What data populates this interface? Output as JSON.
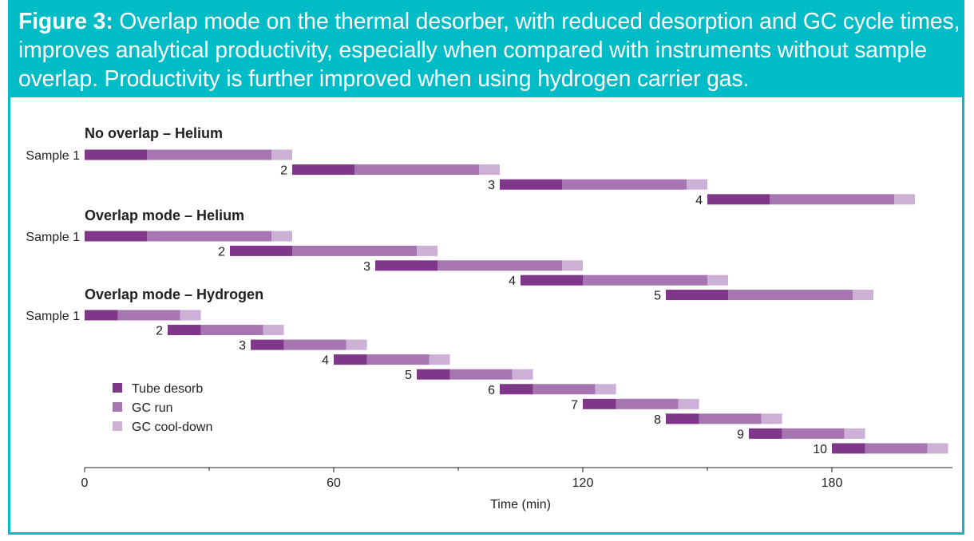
{
  "caption": {
    "figure_label": "Figure 3:",
    "text": "Overlap mode on the thermal desorber, with reduced desorption and GC cycle times, improves analytical productivity, especially when compared with instruments without sample overlap. Productivity is further improved when using hydrogen carrier gas."
  },
  "colors": {
    "frame": "#00bcc7",
    "desorb": "#7f3789",
    "gc_run": "#a776b2",
    "cooldown": "#cdb0d6",
    "text": "#231f20",
    "axis": "#231f20"
  },
  "chart_data": {
    "type": "gantt",
    "xlabel": "Time (min)",
    "xlim": [
      0,
      208
    ],
    "xticks_major": [
      0,
      60,
      120,
      180
    ],
    "xticks_minor": [
      30,
      90,
      150
    ],
    "legend": [
      {
        "key": "desorb",
        "label": "Tube desorb"
      },
      {
        "key": "gc_run",
        "label": "GC run"
      },
      {
        "key": "cooldown",
        "label": "GC cool-down"
      }
    ],
    "groups": [
      {
        "title": "No overlap  – Helium",
        "phases": {
          "desorb": 15,
          "gc_run": 30,
          "cooldown": 5
        },
        "samples": [
          {
            "label": "Sample 1",
            "start": 0
          },
          {
            "label": "2",
            "start": 50
          },
          {
            "label": "3",
            "start": 100
          },
          {
            "label": "4",
            "start": 150
          }
        ]
      },
      {
        "title": "Overlap mode – Helium",
        "phases": {
          "desorb": 15,
          "gc_run": 30,
          "cooldown": 5
        },
        "samples": [
          {
            "label": "Sample 1",
            "start": 0
          },
          {
            "label": "2",
            "start": 35
          },
          {
            "label": "3",
            "start": 70
          },
          {
            "label": "4",
            "start": 105
          },
          {
            "label": "5",
            "start": 140
          }
        ]
      },
      {
        "title": "Overlap mode – Hydrogen",
        "phases": {
          "desorb": 8,
          "gc_run": 15,
          "cooldown": 5
        },
        "samples": [
          {
            "label": "Sample 1",
            "start": 0
          },
          {
            "label": "2",
            "start": 20
          },
          {
            "label": "3",
            "start": 40
          },
          {
            "label": "4",
            "start": 60
          },
          {
            "label": "5",
            "start": 80
          },
          {
            "label": "6",
            "start": 100
          },
          {
            "label": "7",
            "start": 120
          },
          {
            "label": "8",
            "start": 140
          },
          {
            "label": "9",
            "start": 160
          },
          {
            "label": "10",
            "start": 180
          }
        ]
      }
    ]
  }
}
